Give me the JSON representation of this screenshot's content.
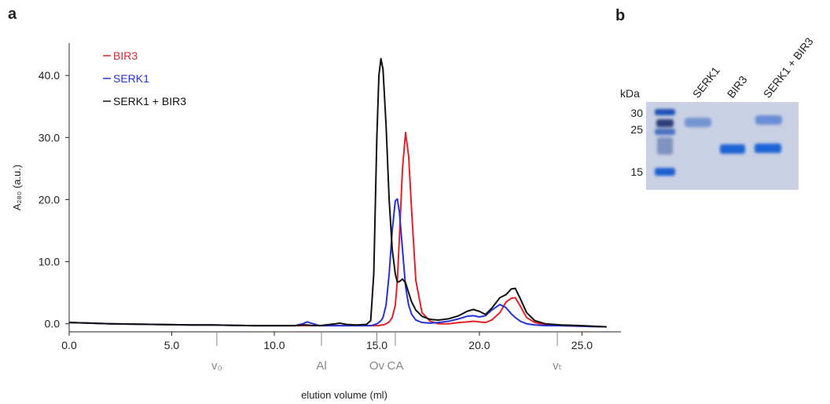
{
  "panel_label": "a",
  "chart_data": {
    "type": "line",
    "xlabel": "elution volume (ml)",
    "ylabel": "A₂₈₀ (a.u.)",
    "xlim": [
      0,
      26.9
    ],
    "ylim": [
      -1.3,
      45.2
    ],
    "xticks": [
      {
        "value": 0,
        "label": "0.0"
      },
      {
        "value": 5,
        "label": "5.0"
      },
      {
        "value": 10,
        "label": "10.0"
      },
      {
        "value": 15,
        "label": "15.0"
      },
      {
        "value": 20,
        "label": "20.0"
      },
      {
        "value": 25,
        "label": "25.0"
      }
    ],
    "yticks": [
      {
        "value": 0,
        "label": "0.0"
      },
      {
        "value": 10,
        "label": "10.0"
      },
      {
        "value": 20,
        "label": "20.0"
      },
      {
        "value": 30,
        "label": "30.0"
      },
      {
        "value": 40,
        "label": "40.0"
      }
    ],
    "x": [
      0,
      1,
      2,
      3,
      4,
      5,
      6,
      7,
      8,
      9,
      10,
      11,
      11.4,
      11.6,
      11.8,
      12.2,
      13,
      13.2,
      13.5,
      14,
      14.5,
      14.7,
      14.85,
      15.0,
      15.1,
      15.2,
      15.3,
      15.45,
      15.6,
      15.75,
      15.9,
      16.0,
      16.1,
      16.25,
      16.4,
      16.55,
      16.7,
      16.9,
      17.2,
      17.6,
      18,
      18.5,
      19,
      19.4,
      19.7,
      20.0,
      20.3,
      20.6,
      21.0,
      21.3,
      21.55,
      21.75,
      22.0,
      22.3,
      22.7,
      23.2,
      24,
      25,
      26.2
    ],
    "series": [
      {
        "name": "BIR3",
        "color": "#e8202a",
        "values": [
          0.2,
          0.1,
          0,
          -0.05,
          -0.1,
          -0.15,
          -0.2,
          -0.2,
          -0.25,
          -0.3,
          -0.3,
          -0.3,
          -0.3,
          -0.3,
          -0.3,
          -0.3,
          -0.3,
          -0.3,
          -0.3,
          -0.3,
          -0.3,
          -0.3,
          -0.3,
          -0.3,
          -0.3,
          -0.2,
          -0.2,
          0,
          0.3,
          1,
          3,
          7,
          14,
          25,
          30.8,
          27,
          18,
          7,
          1.8,
          0.4,
          0,
          0,
          0.2,
          0.3,
          0.4,
          0.3,
          0.2,
          0.6,
          1.8,
          3.5,
          4.1,
          4.2,
          2.8,
          1.0,
          0.2,
          -0.2,
          -0.3,
          -0.4,
          -0.5
        ]
      },
      {
        "name": "SERK1",
        "color": "#2432d8",
        "values": [
          0.2,
          0.1,
          0,
          -0.05,
          -0.1,
          -0.15,
          -0.2,
          -0.2,
          -0.25,
          -0.3,
          -0.3,
          -0.3,
          0,
          0.3,
          0.1,
          -0.3,
          -0.3,
          -0.3,
          -0.3,
          -0.3,
          -0.3,
          -0.3,
          -0.2,
          0,
          0.2,
          0.5,
          1,
          3,
          8,
          15,
          19.8,
          20.1,
          18,
          12,
          6,
          3,
          1.5,
          0.6,
          0.2,
          0.1,
          0.2,
          0.4,
          0.8,
          1.2,
          1.3,
          1.1,
          1.3,
          2.2,
          3.1,
          2.6,
          1.6,
          1.0,
          0.4,
          0,
          -0.2,
          -0.3,
          -0.3,
          -0.4,
          -0.5
        ]
      },
      {
        "name": "SERK1 + BIR3",
        "color": "#111111",
        "values": [
          0.2,
          0.1,
          0,
          -0.05,
          -0.1,
          -0.15,
          -0.2,
          -0.2,
          -0.25,
          -0.3,
          -0.3,
          -0.3,
          -0.2,
          -0.2,
          -0.25,
          -0.3,
          0,
          0.1,
          -0.1,
          -0.2,
          -0.1,
          0.5,
          8,
          30,
          40,
          42.7,
          41,
          32,
          20,
          12,
          8,
          6.7,
          6.8,
          7.2,
          6.6,
          5,
          3.5,
          2.2,
          1.2,
          0.7,
          0.6,
          0.8,
          1.3,
          2.0,
          2.3,
          2.0,
          1.5,
          2.5,
          4.2,
          4.7,
          5.6,
          5.7,
          4.0,
          1.8,
          0.5,
          0,
          -0.2,
          -0.3,
          -0.5
        ]
      }
    ],
    "markers": [
      {
        "label": "v₀",
        "x": 7.2
      },
      {
        "label": "Al",
        "x": 12.3
      },
      {
        "label": "Ov",
        "x": 15.0
      },
      {
        "label": "CA",
        "x": 15.9
      },
      {
        "label": "vₜ",
        "x": 23.8
      }
    ]
  },
  "gel": {
    "panel_label": "b",
    "unit": "kDa",
    "ladder_labels": [
      30,
      25,
      15
    ],
    "lanes": [
      "SERK1",
      "BIR3",
      "SERK1 + BIR3"
    ]
  }
}
